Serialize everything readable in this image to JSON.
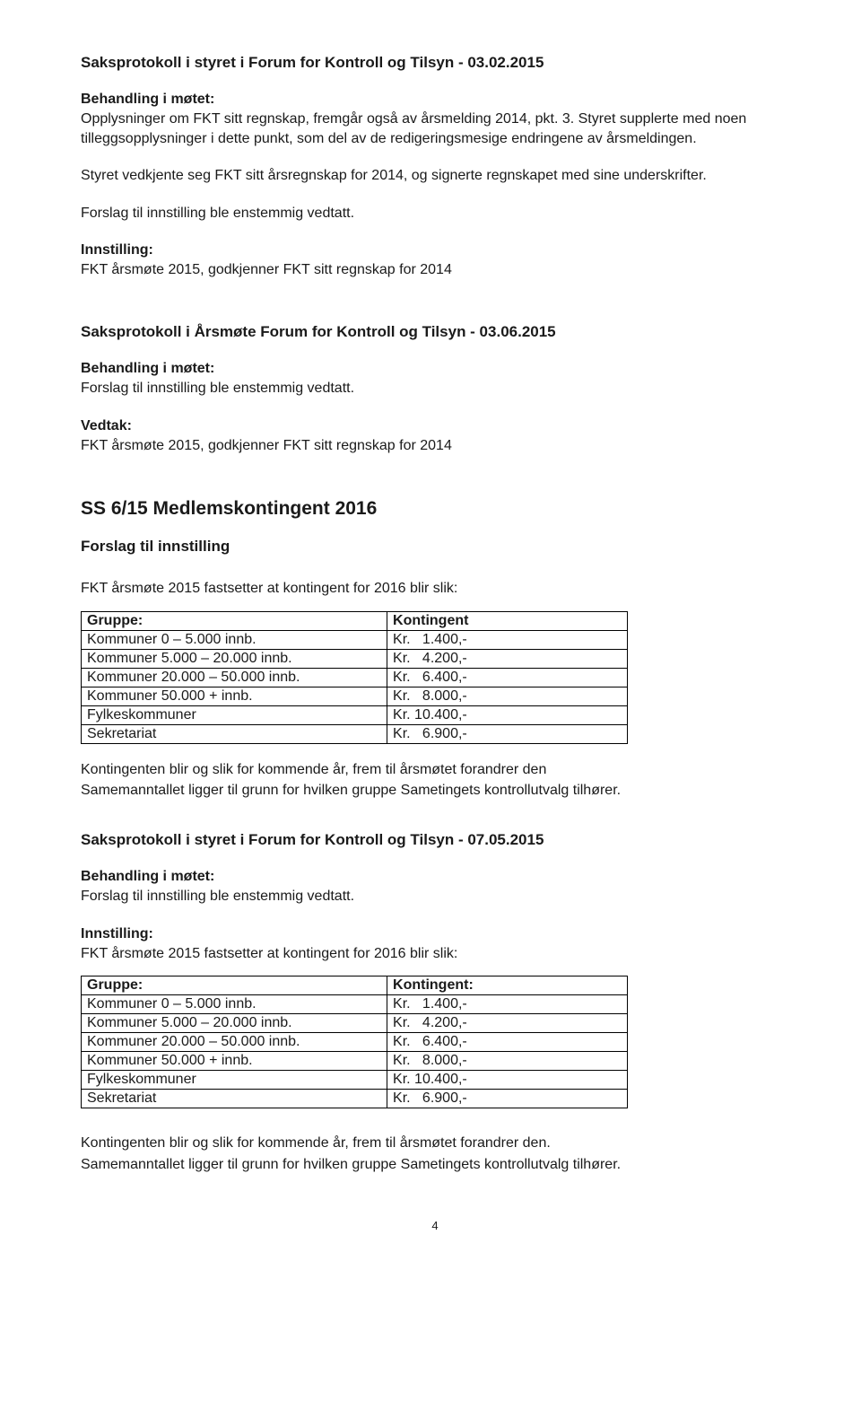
{
  "section1": {
    "title": "Saksprotokoll i styret i Forum for Kontroll og Tilsyn - 03.02.2015",
    "behandling_label": "Behandling i møtet:",
    "behandling_p1": "Opplysninger om FKT sitt regnskap, fremgår også av årsmelding 2014, pkt. 3. Styret supplerte med noen tilleggsopplysninger i dette punkt, som del av de redigeringsmesige endringene av årsmeldingen.",
    "behandling_p2": "Styret vedkjente seg FKT sitt årsregnskap for 2014, og signerte regnskapet med sine underskrifter.",
    "behandling_p3": "Forslag til innstilling ble enstemmig vedtatt.",
    "innstilling_label": "Innstilling:",
    "innstilling_text": "FKT årsmøte 2015, godkjenner FKT sitt regnskap for 2014"
  },
  "section2": {
    "title": "Saksprotokoll i Årsmøte Forum for Kontroll og Tilsyn - 03.06.2015",
    "behandling_label": "Behandling i møtet:",
    "behandling_text": "Forslag til innstilling ble enstemmig vedtatt.",
    "vedtak_label": "Vedtak:",
    "vedtak_text": "FKT årsmøte 2015, godkjenner FKT sitt regnskap for 2014"
  },
  "section3": {
    "ss_title": "SS 6/15 Medlemskontingent 2016",
    "forslag_label": "Forslag til innstilling",
    "intro": "FKT årsmøte 2015 fastsetter at kontingent for 2016 blir slik:",
    "table1": {
      "header_left": "Gruppe:",
      "header_right": "Kontingent",
      "rows": [
        {
          "left": "Kommuner 0 – 5.000 innb.",
          "right": "Kr.   1.400,-"
        },
        {
          "left": "Kommuner 5.000 – 20.000 innb.",
          "right": "Kr.   4.200,-"
        },
        {
          "left": "Kommuner 20.000 – 50.000 innb.",
          "right": "Kr.   6.400,-"
        },
        {
          "left": "Kommuner 50.000 + innb.",
          "right": "Kr.   8.000,-"
        },
        {
          "left": "Fylkeskommuner",
          "right": "Kr. 10.400,-"
        },
        {
          "left": "Sekretariat",
          "right": "Kr.   6.900,-"
        }
      ]
    },
    "after_table_p1": "Kontingenten blir og slik for kommende år, frem til årsmøtet forandrer den",
    "after_table_p2": "Samemanntallet ligger til grunn for hvilken gruppe Sametingets kontrollutvalg tilhører."
  },
  "section4": {
    "title": "Saksprotokoll i styret i Forum for Kontroll og Tilsyn - 07.05.2015",
    "behandling_label": "Behandling i møtet:",
    "behandling_text": "Forslag til innstilling ble enstemmig vedtatt.",
    "innstilling_label": "Innstilling:",
    "innstilling_text": "FKT årsmøte 2015 fastsetter at kontingent for 2016 blir slik:",
    "table2": {
      "header_left": "Gruppe:",
      "header_right": "Kontingent:",
      "rows": [
        {
          "left": "Kommuner 0 – 5.000 innb.",
          "right": "Kr.   1.400,-"
        },
        {
          "left": "Kommuner 5.000 – 20.000 innb.",
          "right": "Kr.   4.200,-"
        },
        {
          "left": "Kommuner 20.000 – 50.000 innb.",
          "right": "Kr.   6.400,-"
        },
        {
          "left": "Kommuner 50.000 + innb.",
          "right": "Kr.   8.000,-"
        },
        {
          "left": "Fylkeskommuner",
          "right": "Kr. 10.400,-"
        },
        {
          "left": "Sekretariat",
          "right": "Kr.   6.900,-"
        }
      ]
    },
    "after_table_p1": "Kontingenten blir og slik for kommende år, frem til årsmøtet forandrer den.",
    "after_table_p2": "Samemanntallet ligger til grunn for hvilken gruppe Sametingets kontrollutvalg tilhører."
  },
  "page_number": "4"
}
